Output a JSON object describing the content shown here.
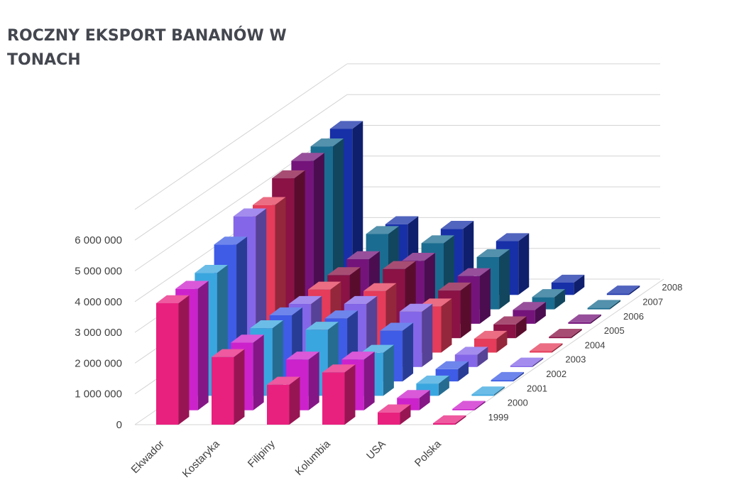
{
  "chart_data": {
    "type": "bar",
    "title": "ROCZNY EKSPORT BANANÓW W TONACH",
    "categories": [
      "Ekwador",
      "Kostaryka",
      "Filipiny",
      "Kolumbia",
      "USA",
      "Polska"
    ],
    "series": [
      {
        "name": "1999",
        "color": "#e8217f",
        "values": [
          3950000,
          2200000,
          1300000,
          1700000,
          400000,
          10000
        ]
      },
      {
        "name": "2000",
        "color": "#cc22cc",
        "values": [
          3950000,
          2200000,
          1650000,
          1650000,
          400000,
          10000
        ]
      },
      {
        "name": "2001",
        "color": "#3aa6df",
        "values": [
          4000000,
          2200000,
          2150000,
          1400000,
          400000,
          10000
        ]
      },
      {
        "name": "2002",
        "color": "#3e5ce6",
        "values": [
          4450000,
          2150000,
          2050000,
          1650000,
          400000,
          10000
        ]
      },
      {
        "name": "2003",
        "color": "#8466e8",
        "values": [
          4900000,
          2050000,
          2050000,
          1800000,
          400000,
          10000
        ]
      },
      {
        "name": "2004",
        "color": "#e43c5a",
        "values": [
          4800000,
          2050000,
          2000000,
          1500000,
          450000,
          10000
        ]
      },
      {
        "name": "2005",
        "color": "#8a1245",
        "values": [
          5200000,
          2050000,
          2250000,
          1550000,
          450000,
          10000
        ]
      },
      {
        "name": "2006",
        "color": "#74147a",
        "values": [
          5300000,
          2100000,
          2050000,
          1550000,
          450000,
          10000
        ]
      },
      {
        "name": "2007",
        "color": "#1a6c90",
        "values": [
          5300000,
          2450000,
          2150000,
          1700000,
          400000,
          10000
        ]
      },
      {
        "name": "2008",
        "color": "#1730a8",
        "values": [
          5400000,
          2300000,
          2150000,
          1750000,
          400000,
          10000
        ]
      }
    ],
    "ylim": [
      0,
      6000000
    ],
    "yticks": [
      "0",
      "1 000 000",
      "2 000 000",
      "3 000 000",
      "4 000 000",
      "5 000 000",
      "6 000 000"
    ],
    "ytick_values": [
      0,
      1000000,
      2000000,
      3000000,
      4000000,
      5000000,
      6000000
    ],
    "grid": true,
    "projection": "3d-column"
  }
}
